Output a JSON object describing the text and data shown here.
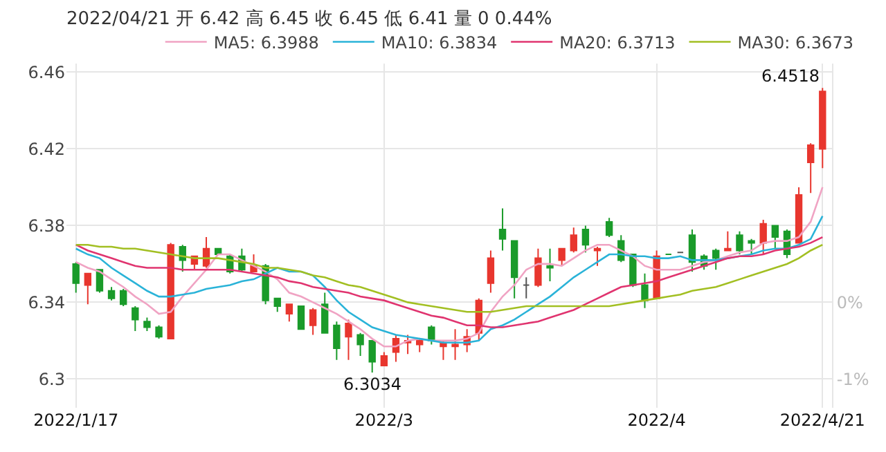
{
  "chart_data": {
    "type": "candlestick",
    "title": "2022/04/21 开 6.42 高 6.45 收 6.45 低 6.41 量 0 0.44%",
    "categories": [
      "2022/1/17",
      null,
      null,
      null,
      null,
      null,
      null,
      null,
      null,
      null,
      null,
      null,
      null,
      null,
      null,
      null,
      null,
      null,
      null,
      null,
      null,
      null,
      null,
      null,
      null,
      null,
      "2022/3",
      null,
      null,
      null,
      null,
      null,
      null,
      null,
      null,
      null,
      null,
      null,
      null,
      null,
      null,
      null,
      null,
      null,
      null,
      null,
      null,
      null,
      null,
      "2022/4",
      null,
      null,
      null,
      null,
      null,
      null,
      null,
      null,
      null,
      null,
      null,
      null,
      null,
      "2022/4/21"
    ],
    "ohlc": [
      [
        6.36,
        6.361,
        6.345,
        6.35
      ],
      [
        6.349,
        6.355,
        6.339,
        6.355
      ],
      [
        6.357,
        6.357,
        6.345,
        6.346
      ],
      [
        6.346,
        6.348,
        6.341,
        6.342
      ],
      [
        6.346,
        6.347,
        6.338,
        6.339
      ],
      [
        6.337,
        6.338,
        6.325,
        6.331
      ],
      [
        6.33,
        6.332,
        6.325,
        6.327
      ],
      [
        6.327,
        6.328,
        6.321,
        6.322
      ],
      [
        6.321,
        6.371,
        6.321,
        6.37
      ],
      [
        6.369,
        6.37,
        6.356,
        6.362
      ],
      [
        6.36,
        6.364,
        6.357,
        6.364
      ],
      [
        6.359,
        6.374,
        6.358,
        6.368
      ],
      [
        6.368,
        6.368,
        6.365,
        6.365
      ],
      [
        6.364,
        6.365,
        6.355,
        6.356
      ],
      [
        6.364,
        6.368,
        6.356,
        6.357
      ],
      [
        6.356,
        6.365,
        6.356,
        6.359
      ],
      [
        6.359,
        6.36,
        6.339,
        6.341
      ],
      [
        6.342,
        6.342,
        6.335,
        6.338
      ],
      [
        6.334,
        6.339,
        6.33,
        6.339
      ],
      [
        6.338,
        6.338,
        6.326,
        6.326
      ],
      [
        6.328,
        6.337,
        6.323,
        6.336
      ],
      [
        6.339,
        6.345,
        6.324,
        6.324
      ],
      [
        6.328,
        6.33,
        6.31,
        6.316
      ],
      [
        6.322,
        6.331,
        6.31,
        6.329
      ],
      [
        6.323,
        6.324,
        6.312,
        6.318
      ],
      [
        6.32,
        6.32,
        6.3034,
        6.309
      ],
      [
        6.307,
        6.314,
        6.307,
        6.312
      ],
      [
        6.314,
        6.323,
        6.309,
        6.321
      ],
      [
        6.319,
        6.323,
        6.313,
        6.32
      ],
      [
        6.318,
        6.321,
        6.314,
        6.32
      ],
      [
        6.327,
        6.328,
        6.318,
        6.32
      ],
      [
        6.317,
        6.32,
        6.31,
        6.319
      ],
      [
        6.317,
        6.326,
        6.31,
        6.318
      ],
      [
        6.318,
        6.326,
        6.314,
        6.322
      ],
      [
        6.324,
        6.342,
        6.32,
        6.341
      ],
      [
        6.35,
        6.367,
        6.345,
        6.363
      ],
      [
        6.378,
        6.389,
        6.367,
        6.373
      ],
      [
        6.372,
        6.372,
        6.342,
        6.353
      ],
      [
        6.349,
        6.353,
        6.342,
        6.349
      ],
      [
        6.349,
        6.368,
        6.348,
        6.363
      ],
      [
        6.359,
        6.368,
        6.351,
        6.358
      ],
      [
        6.362,
        6.368,
        6.359,
        6.368
      ],
      [
        6.367,
        6.379,
        6.366,
        6.375
      ],
      [
        6.378,
        6.38,
        6.366,
        6.37
      ],
      [
        6.367,
        6.369,
        6.359,
        6.368
      ],
      [
        6.382,
        6.384,
        6.374,
        6.375
      ],
      [
        6.372,
        6.375,
        6.361,
        6.362
      ],
      [
        6.365,
        6.365,
        6.348,
        6.349
      ],
      [
        6.349,
        6.355,
        6.337,
        6.341
      ],
      [
        6.342,
        6.367,
        6.342,
        6.364
      ],
      [
        6.365,
        6.365,
        6.365,
        6.365
      ],
      [
        6.366,
        6.366,
        6.366,
        6.366
      ],
      [
        6.375,
        6.378,
        6.356,
        6.361
      ],
      [
        6.364,
        6.365,
        6.357,
        6.359
      ],
      [
        6.367,
        6.368,
        6.357,
        6.363
      ],
      [
        6.367,
        6.377,
        6.367,
        6.368
      ],
      [
        6.375,
        6.377,
        6.365,
        6.367
      ],
      [
        6.372,
        6.373,
        6.365,
        6.371
      ],
      [
        6.371,
        6.383,
        6.365,
        6.381
      ],
      [
        6.38,
        6.38,
        6.368,
        6.374
      ],
      [
        6.377,
        6.378,
        6.363,
        6.365
      ],
      [
        6.371,
        6.4,
        6.371,
        6.396
      ],
      [
        6.413,
        6.423,
        6.397,
        6.422
      ],
      [
        6.42,
        6.4518,
        6.41,
        6.45
      ]
    ],
    "colors": [
      "#1a9b2a",
      "#e8362e",
      "#1a9b2a",
      "#1a9b2a",
      "#1a9b2a",
      "#1a9b2a",
      "#1a9b2a",
      "#1a9b2a",
      "#e8362e",
      "#1a9b2a",
      "#e8362e",
      "#e8362e",
      "#1a9b2a",
      "#1a9b2a",
      "#1a9b2a",
      "#e8362e",
      "#1a9b2a",
      "#1a9b2a",
      "#e8362e",
      "#1a9b2a",
      "#e8362e",
      "#1a9b2a",
      "#1a9b2a",
      "#e8362e",
      "#1a9b2a",
      "#1a9b2a",
      "#e8362e",
      "#e8362e",
      "#e8362e",
      "#e8362e",
      "#1a9b2a",
      "#e8362e",
      "#e8362e",
      "#e8362e",
      "#e8362e",
      "#e8362e",
      "#1a9b2a",
      "#1a9b2a",
      "#555555",
      "#e8362e",
      "#1a9b2a",
      "#e8362e",
      "#e8362e",
      "#1a9b2a",
      "#e8362e",
      "#1a9b2a",
      "#1a9b2a",
      "#1a9b2a",
      "#1a9b2a",
      "#e8362e",
      "#1a9b2a",
      "#555555",
      "#1a9b2a",
      "#1a9b2a",
      "#1a9b2a",
      "#e8362e",
      "#1a9b2a",
      "#1a9b2a",
      "#e8362e",
      "#1a9b2a",
      "#1a9b2a",
      "#e8362e",
      "#e8362e",
      "#e8362e"
    ],
    "series": [
      {
        "name": "MA5: 6.3988",
        "color": "#f0a3c3",
        "type": "line",
        "values": [
          6.361,
          6.358,
          6.356,
          6.352,
          6.348,
          6.343,
          6.339,
          6.334,
          6.335,
          6.343,
          6.35,
          6.357,
          6.365,
          6.365,
          6.362,
          6.359,
          6.356,
          6.352,
          6.345,
          6.343,
          6.34,
          6.337,
          6.334,
          6.33,
          6.326,
          6.321,
          6.317,
          6.317,
          6.32,
          6.321,
          6.32,
          6.32,
          6.32,
          6.321,
          6.324,
          6.335,
          6.343,
          6.349,
          6.357,
          6.36,
          6.36,
          6.359,
          6.363,
          6.367,
          6.37,
          6.37,
          6.367,
          6.364,
          6.359,
          6.357,
          6.357,
          6.357,
          6.359,
          6.361,
          6.362,
          6.364,
          6.366,
          6.367,
          6.371,
          6.372,
          6.372,
          6.374,
          6.382,
          6.4
        ]
      },
      {
        "name": "MA10: 6.3834",
        "color": "#2ab3d8",
        "type": "line",
        "values": [
          6.368,
          6.365,
          6.363,
          6.358,
          6.354,
          6.35,
          6.346,
          6.343,
          6.343,
          6.344,
          6.345,
          6.347,
          6.348,
          6.349,
          6.351,
          6.352,
          6.355,
          6.358,
          6.356,
          6.356,
          6.354,
          6.348,
          6.341,
          6.335,
          6.331,
          6.327,
          6.325,
          6.323,
          6.322,
          6.321,
          6.32,
          6.319,
          6.319,
          6.319,
          6.32,
          6.326,
          6.328,
          6.331,
          6.335,
          6.339,
          6.343,
          6.348,
          6.353,
          6.357,
          6.361,
          6.365,
          6.365,
          6.364,
          6.364,
          6.363,
          6.363,
          6.364,
          6.362,
          6.362,
          6.362,
          6.363,
          6.364,
          6.365,
          6.367,
          6.368,
          6.368,
          6.37,
          6.373,
          6.385
        ]
      },
      {
        "name": "MA20: 6.3713",
        "color": "#e0346f",
        "type": "line",
        "values": [
          6.37,
          6.367,
          6.365,
          6.363,
          6.361,
          6.359,
          6.358,
          6.358,
          6.358,
          6.357,
          6.357,
          6.357,
          6.357,
          6.357,
          6.356,
          6.355,
          6.354,
          6.353,
          6.351,
          6.35,
          6.348,
          6.347,
          6.346,
          6.345,
          6.343,
          6.342,
          6.341,
          6.339,
          6.337,
          6.335,
          6.333,
          6.332,
          6.33,
          6.328,
          6.328,
          6.327,
          6.327,
          6.328,
          6.329,
          6.33,
          6.332,
          6.334,
          6.336,
          6.339,
          6.342,
          6.345,
          6.348,
          6.349,
          6.35,
          6.351,
          6.353,
          6.355,
          6.357,
          6.359,
          6.361,
          6.363,
          6.364,
          6.364,
          6.365,
          6.367,
          6.368,
          6.369,
          6.371,
          6.374
        ]
      },
      {
        "name": "MA30: 6.3673",
        "color": "#a2bf22",
        "type": "line",
        "values": [
          6.37,
          6.37,
          6.369,
          6.369,
          6.368,
          6.368,
          6.367,
          6.366,
          6.365,
          6.364,
          6.363,
          6.363,
          6.363,
          6.362,
          6.361,
          6.36,
          6.358,
          6.358,
          6.357,
          6.356,
          6.354,
          6.353,
          6.351,
          6.349,
          6.348,
          6.346,
          6.344,
          6.342,
          6.34,
          6.339,
          6.338,
          6.337,
          6.336,
          6.335,
          6.335,
          6.335,
          6.336,
          6.337,
          6.338,
          6.338,
          6.338,
          6.338,
          6.338,
          6.338,
          6.338,
          6.338,
          6.339,
          6.34,
          6.341,
          6.342,
          6.343,
          6.344,
          6.346,
          6.347,
          6.348,
          6.35,
          6.352,
          6.354,
          6.356,
          6.358,
          6.36,
          6.363,
          6.367,
          6.37
        ]
      }
    ],
    "annotations": [
      "6.4518",
      "6.3034"
    ],
    "ylim": [
      6.285,
      6.4645
    ],
    "yticks": [
      6.3,
      6.34,
      6.38,
      6.42,
      6.46
    ],
    "y2lim": [
      -1.375,
      3.112
    ],
    "y2ticks": [
      {
        "value": -1,
        "label": "-1%"
      },
      {
        "value": 0,
        "label": "0%"
      }
    ],
    "grid": true,
    "legend": "top"
  }
}
